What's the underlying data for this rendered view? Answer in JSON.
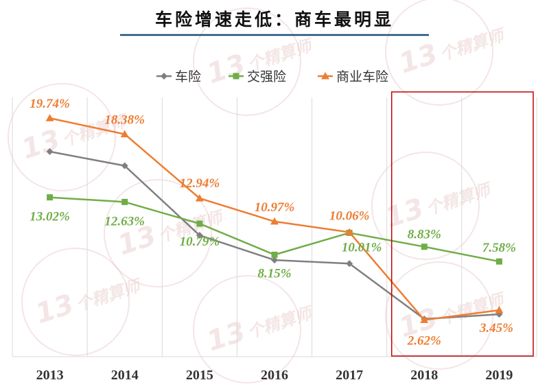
{
  "chart_data": {
    "type": "line",
    "title": "车险增速走低：商车最明显",
    "xlabel": "",
    "ylabel": "",
    "categories": [
      "2013",
      "2014",
      "2015",
      "2016",
      "2017",
      "2018",
      "2019"
    ],
    "ylim": [
      -0.5,
      21.5
    ],
    "grid": "vertical",
    "legend_position": "top-center",
    "series": [
      {
        "name": "车险",
        "color": "#7f7f7f",
        "marker": "diamond",
        "values": [
          16.9,
          15.7,
          9.8,
          7.7,
          7.4,
          2.7,
          3.1
        ],
        "labels": []
      },
      {
        "name": "交强险",
        "color": "#70ad47",
        "marker": "square",
        "values": [
          13.02,
          12.63,
          10.79,
          8.15,
          10.01,
          8.83,
          7.58
        ],
        "labels": [
          "13.02%",
          "12.63%",
          "10.79%",
          "8.15%",
          "10.01%",
          "8.83%",
          "7.58%"
        ]
      },
      {
        "name": "商业车险",
        "color": "#ed7d31",
        "marker": "triangle",
        "values": [
          19.74,
          18.38,
          12.94,
          10.97,
          10.06,
          2.62,
          3.45
        ],
        "labels": [
          "19.74%",
          "18.38%",
          "12.94%",
          "10.97%",
          "10.06%",
          "2.62%",
          "3.45%"
        ]
      }
    ],
    "highlight_box": {
      "from_category": "2018",
      "to_category": "2019",
      "color": "#c00000"
    }
  },
  "watermark": {
    "number": "13",
    "text": "个精算师",
    "color": "#d9a8a8"
  },
  "colors": {
    "title_underline": "#1f4e79",
    "grid": "#d9d9d9"
  }
}
